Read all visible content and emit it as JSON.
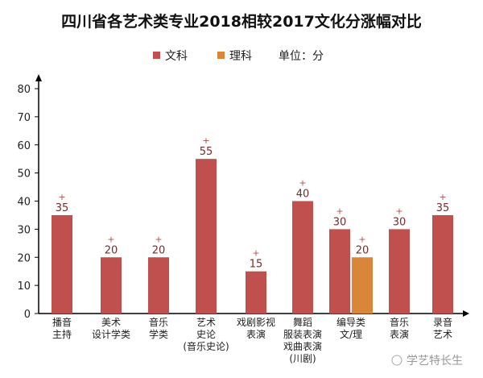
{
  "chart_data": {
    "type": "bar",
    "title": "四川省各艺术类专业2018相较2017文化分涨幅对比",
    "unit_note": "单位：分",
    "ylim": [
      0,
      80
    ],
    "yticks": [
      0,
      10,
      20,
      30,
      40,
      50,
      60,
      70,
      80
    ],
    "grid": false,
    "legend_position": "top-center",
    "categories": [
      [
        "播音",
        "主持"
      ],
      [
        "美术",
        "设计学类"
      ],
      [
        "音乐",
        "学类"
      ],
      [
        "艺术",
        "史论",
        "(音乐史论)"
      ],
      [
        "戏剧影视",
        "表演"
      ],
      [
        "舞蹈",
        "服装表演",
        "戏曲表演",
        "(川剧)"
      ],
      [
        "编导类",
        "文/理"
      ],
      [
        "音乐",
        "表演"
      ],
      [
        "录音",
        "艺术"
      ]
    ],
    "series": [
      {
        "name": "文科",
        "color": "#c0504d",
        "values": [
          35,
          20,
          20,
          55,
          15,
          40,
          30,
          30,
          35
        ]
      },
      {
        "name": "理科",
        "color": "#d9863a",
        "values": [
          null,
          null,
          null,
          null,
          null,
          null,
          20,
          null,
          null
        ]
      }
    ],
    "data_label_prefix": "+"
  },
  "watermark": "学艺特长生"
}
